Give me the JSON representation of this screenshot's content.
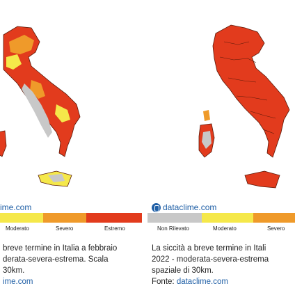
{
  "colors": {
    "non_rilevato": "#c8c8c8",
    "moderato": "#f5e84a",
    "severo": "#ef9a2a",
    "estremo": "#e23b1d",
    "brand": "#1f5fa6"
  },
  "left": {
    "brand": "ime.com",
    "legend": [
      {
        "label": "Moderato",
        "color": "#f5e84a"
      },
      {
        "label": "Severo",
        "color": "#ef9a2a"
      },
      {
        "label": "Estremo",
        "color": "#e23b1d"
      }
    ],
    "caption_lines": [
      "breve termine in Italia a febbraio",
      "derata-severa-estrema. Scala",
      "30km."
    ],
    "source_link": "ime.com"
  },
  "right": {
    "brand": "dataclime.com",
    "legend": [
      {
        "label": "Non Rilevato",
        "color": "#c8c8c8"
      },
      {
        "label": "Moderato",
        "color": "#f5e84a"
      },
      {
        "label": "Severo",
        "color": "#ef9a2a"
      }
    ],
    "caption_lines": [
      "La siccità a breve termine in Itali",
      "2022 - moderata-severa-estrema",
      "spaziale di 30km."
    ],
    "source_prefix": "Fonte: ",
    "source_link": "dataclime.com"
  }
}
